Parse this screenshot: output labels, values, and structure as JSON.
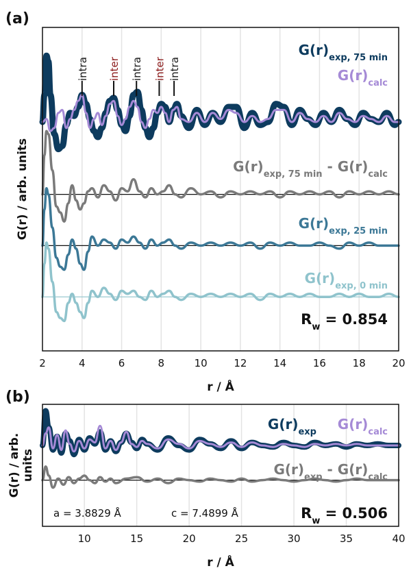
{
  "chart_data": [
    {
      "panel": "(a)",
      "type": "line",
      "xlabel": "r / Å",
      "ylabel": "G(r) / arb. units",
      "xlim": [
        2,
        20
      ],
      "xticks": [
        2,
        4,
        6,
        8,
        10,
        12,
        14,
        16,
        18,
        20
      ],
      "grid": "vertical",
      "rw_label": "R",
      "rw_sub": "w",
      "rw_value": " = 0.854",
      "peak_annotations": [
        {
          "x": 4.0,
          "label": "intra",
          "color": "#1a1a1a"
        },
        {
          "x": 5.6,
          "label": "inter",
          "color": "#8b1a1a"
        },
        {
          "x": 6.75,
          "label": "intra",
          "color": "#1a1a1a"
        },
        {
          "x": 7.9,
          "label": "inter",
          "color": "#8b1a1a"
        },
        {
          "x": 8.65,
          "label": "intra",
          "color": "#1a1a1a"
        }
      ],
      "series": [
        {
          "name": "G(r)",
          "sub": "exp, 75 min",
          "color": "#0d3b5e",
          "baseline": 0.0,
          "x": [
            2.0,
            2.1,
            2.2,
            2.3,
            2.4,
            2.6,
            2.8,
            3.0,
            3.2,
            3.4,
            3.6,
            3.8,
            4.0,
            4.2,
            4.4,
            4.6,
            4.8,
            5.0,
            5.2,
            5.4,
            5.6,
            5.8,
            6.0,
            6.2,
            6.4,
            6.6,
            6.8,
            7.0,
            7.2,
            7.4,
            7.6,
            7.8,
            8.0,
            8.2,
            8.4,
            8.6,
            8.8,
            9.0,
            9.4,
            9.8,
            10.2,
            10.6,
            11.0,
            11.4,
            11.8,
            12.2,
            12.6,
            13.0,
            13.4,
            13.8,
            14.2,
            14.6,
            15.0,
            15.4,
            15.8,
            16.2,
            16.6,
            17.0,
            17.4,
            17.8,
            18.2,
            18.6,
            19.0,
            19.4,
            19.8,
            20.0
          ],
          "y": [
            0.0,
            0.9,
            2.2,
            2.0,
            0.9,
            -0.4,
            -0.9,
            -0.8,
            -0.1,
            0.3,
            0.2,
            0.5,
            0.9,
            0.6,
            0.1,
            -0.3,
            -0.5,
            -0.2,
            0.3,
            0.7,
            0.8,
            0.4,
            -0.1,
            -0.3,
            0.2,
            0.9,
            1.0,
            0.4,
            -0.2,
            -0.5,
            -0.2,
            0.3,
            0.6,
            0.5,
            0.0,
            0.4,
            0.6,
            0.2,
            -0.2,
            0.4,
            -0.1,
            0.3,
            0.0,
            0.5,
            0.5,
            -0.2,
            0.3,
            -0.1,
            0.0,
            0.6,
            0.5,
            -0.1,
            0.4,
            0.1,
            -0.1,
            0.3,
            0.0,
            0.4,
            0.1,
            -0.1,
            0.3,
            0.1,
            0.0,
            0.3,
            -0.1,
            0.0
          ]
        },
        {
          "name": "G(r)",
          "sub": "calc",
          "color": "#a58ad6",
          "baseline": 0.0,
          "x": [
            2.0,
            2.2,
            2.4,
            2.6,
            2.8,
            3.0,
            3.2,
            3.4,
            3.6,
            3.8,
            4.0,
            4.2,
            4.4,
            4.6,
            4.8,
            5.0,
            5.2,
            5.4,
            5.6,
            5.8,
            6.0,
            6.2,
            6.4,
            6.6,
            6.8,
            7.0,
            7.2,
            7.4,
            7.6,
            7.8,
            8.0,
            8.2,
            8.4,
            8.6,
            8.8,
            9.0,
            9.4,
            9.8,
            10.2,
            10.6,
            11.0,
            11.4,
            11.8,
            12.2,
            12.6,
            13.0,
            13.4,
            13.8,
            14.2,
            14.6,
            15.0,
            15.4,
            15.8,
            16.2,
            16.6,
            17.0,
            17.4,
            17.8,
            18.2,
            18.6,
            19.0,
            19.4,
            19.8,
            20.0
          ],
          "y": [
            0.0,
            0.1,
            -0.3,
            -0.2,
            0.3,
            0.4,
            -0.2,
            0.1,
            0.4,
            0.7,
            0.9,
            0.3,
            -0.2,
            0.1,
            0.3,
            -0.1,
            0.2,
            0.6,
            0.7,
            0.2,
            -0.1,
            0.1,
            0.5,
            0.7,
            0.5,
            0.0,
            -0.2,
            0.1,
            0.4,
            0.3,
            0.5,
            0.3,
            0.0,
            0.4,
            0.5,
            0.1,
            0.0,
            0.3,
            0.0,
            0.3,
            0.1,
            0.4,
            0.3,
            0.0,
            0.2,
            0.0,
            0.1,
            0.4,
            0.4,
            0.0,
            0.3,
            0.1,
            0.0,
            0.2,
            0.0,
            0.3,
            0.1,
            0.0,
            0.2,
            0.1,
            0.0,
            0.2,
            0.0,
            0.0
          ]
        },
        {
          "name": "G(r)",
          "sub": "exp, 75 min",
          "suffix_name": " - G(r)",
          "suffix_sub": "calc",
          "color": "#7a7a7a",
          "baseline": -2.4,
          "x": [
            2.0,
            2.1,
            2.2,
            2.3,
            2.5,
            2.7,
            2.9,
            3.1,
            3.3,
            3.5,
            3.7,
            3.9,
            4.1,
            4.3,
            4.5,
            4.8,
            5.1,
            5.4,
            5.7,
            6.0,
            6.3,
            6.6,
            6.9,
            7.2,
            7.5,
            7.8,
            8.1,
            8.4,
            8.7,
            9.0,
            9.5,
            10.0,
            10.5,
            11.0,
            11.5,
            12.0,
            12.5,
            13.0,
            13.5,
            14.0,
            14.5,
            15.0,
            15.5,
            16.0,
            16.5,
            17.0,
            17.5,
            18.0,
            18.5,
            19.0,
            19.5,
            20.0
          ],
          "y": [
            0.0,
            1.3,
            2.1,
            2.0,
            0.8,
            -0.4,
            -0.6,
            -0.9,
            -0.3,
            0.3,
            -0.2,
            -0.5,
            -0.3,
            0.1,
            0.2,
            -0.1,
            0.3,
            0.1,
            -0.2,
            0.2,
            0.1,
            0.5,
            0.1,
            -0.1,
            0.2,
            0.0,
            0.1,
            0.3,
            0.0,
            -0.1,
            0.2,
            0.0,
            0.1,
            -0.1,
            0.1,
            0.0,
            0.1,
            0.0,
            0.1,
            -0.1,
            0.1,
            0.0,
            0.1,
            0.0,
            0.1,
            -0.1,
            0.1,
            0.0,
            0.1,
            0.0,
            0.1,
            0.0
          ]
        },
        {
          "name": "G(r)",
          "sub": "exp, 25 min",
          "color": "#3c7896",
          "baseline": -4.1,
          "x": [
            2.0,
            2.1,
            2.2,
            2.3,
            2.5,
            2.7,
            2.9,
            3.1,
            3.3,
            3.5,
            3.7,
            3.9,
            4.1,
            4.3,
            4.5,
            4.8,
            5.1,
            5.4,
            5.7,
            6.0,
            6.3,
            6.6,
            6.9,
            7.2,
            7.5,
            7.8,
            8.1,
            8.4,
            8.7,
            9.0,
            9.5,
            10.0,
            10.5,
            11.0,
            11.5,
            12.0,
            12.5,
            13.0,
            13.5,
            14.0,
            14.5,
            15.0,
            15.5,
            16.0,
            16.5,
            17.0,
            17.5,
            18.0,
            18.5,
            19.0,
            19.5,
            20.0
          ],
          "y": [
            0.0,
            1.2,
            1.9,
            1.7,
            0.6,
            -0.4,
            -0.7,
            -0.8,
            -0.3,
            0.2,
            -0.1,
            -0.6,
            -0.8,
            -0.2,
            0.3,
            0.0,
            0.2,
            0.1,
            -0.1,
            0.2,
            0.1,
            0.3,
            0.1,
            -0.1,
            0.2,
            0.0,
            0.1,
            0.2,
            0.0,
            -0.1,
            0.1,
            0.0,
            0.1,
            0.0,
            0.1,
            0.0,
            0.1,
            -0.1,
            0.1,
            0.0,
            0.1,
            0.0,
            0.0,
            0.1,
            0.0,
            -0.1,
            0.1,
            0.0,
            0.1,
            0.0,
            0.0,
            0.0
          ]
        },
        {
          "name": "G(r)",
          "sub": "exp, 0 min",
          "color": "#8fc3cc",
          "baseline": -5.8,
          "x": [
            2.0,
            2.1,
            2.2,
            2.3,
            2.5,
            2.7,
            2.9,
            3.1,
            3.3,
            3.5,
            3.7,
            3.9,
            4.1,
            4.3,
            4.5,
            4.8,
            5.1,
            5.4,
            5.7,
            6.0,
            6.3,
            6.6,
            6.9,
            7.2,
            7.5,
            7.8,
            8.1,
            8.4,
            8.7,
            9.0,
            9.5,
            10.0,
            10.5,
            11.0,
            11.5,
            12.0,
            12.5,
            13.0,
            13.5,
            14.0,
            14.5,
            15.0,
            15.5,
            16.0,
            16.5,
            17.0,
            17.5,
            18.0,
            18.5,
            19.0,
            19.5,
            20.0
          ],
          "y": [
            0.0,
            1.1,
            1.8,
            1.6,
            0.5,
            -0.5,
            -0.7,
            -0.8,
            -0.2,
            0.1,
            -0.2,
            -0.5,
            -0.7,
            -0.2,
            0.2,
            0.0,
            0.3,
            0.1,
            -0.1,
            0.2,
            0.1,
            0.2,
            0.0,
            -0.1,
            0.2,
            0.0,
            0.1,
            0.2,
            0.0,
            -0.1,
            0.1,
            0.0,
            0.1,
            0.0,
            0.1,
            0.0,
            0.1,
            -0.1,
            0.1,
            0.0,
            0.1,
            0.0,
            0.1,
            0.0,
            0.0,
            0.1,
            0.0,
            0.1,
            0.0,
            0.0,
            0.1,
            0.0
          ]
        }
      ]
    },
    {
      "panel": "(b)",
      "type": "line",
      "xlabel": "r / Å",
      "ylabel": "G(r) / arb.\nunits",
      "ylabel_line1": "G(r) / arb.",
      "ylabel_line2": "units",
      "xlim": [
        6,
        40
      ],
      "xticks": [
        10,
        15,
        20,
        25,
        30,
        35,
        40
      ],
      "grid": "vertical",
      "lattice_a": "a = 3.8829 Å",
      "lattice_c": "c = 7.4899 Å",
      "rw_label": "R",
      "rw_sub": "w",
      "rw_value": " = 0.506",
      "series": [
        {
          "name": "G(r)",
          "sub": "exp",
          "color": "#0d3b5e",
          "baseline": 0.0,
          "x": [
            6.0,
            6.3,
            6.6,
            7.0,
            7.4,
            7.8,
            8.2,
            8.6,
            9.0,
            9.5,
            10.0,
            10.5,
            11.0,
            11.5,
            12.0,
            12.5,
            13.0,
            13.5,
            14.0,
            14.5,
            15.0,
            15.5,
            16.0,
            17.0,
            18.0,
            19.0,
            20.0,
            21.0,
            22.0,
            23.0,
            24.0,
            25.0,
            26.0,
            27.0,
            28.0,
            29.0,
            30.0,
            31.0,
            32.0,
            33.0,
            34.0,
            35.0,
            36.0,
            37.0,
            38.0,
            39.0,
            40.0
          ],
          "y": [
            0.0,
            2.3,
            1.2,
            -0.3,
            0.6,
            -0.5,
            0.8,
            0.3,
            -0.6,
            0.4,
            -0.3,
            0.5,
            0.1,
            0.9,
            -0.3,
            0.3,
            -0.4,
            0.2,
            0.8,
            0.2,
            -0.2,
            0.4,
            0.1,
            -0.3,
            0.5,
            0.0,
            -0.3,
            0.4,
            0.1,
            -0.2,
            0.3,
            -0.2,
            0.2,
            0.0,
            -0.1,
            0.2,
            0.0,
            -0.1,
            0.2,
            0.0,
            0.1,
            -0.1,
            0.1,
            0.0,
            0.1,
            0.0,
            0.0
          ]
        },
        {
          "name": "G(r)",
          "sub": "calc",
          "color": "#a58ad6",
          "baseline": 0.0,
          "x": [
            6.0,
            6.3,
            6.6,
            7.0,
            7.4,
            7.8,
            8.2,
            8.6,
            9.0,
            9.5,
            10.0,
            10.5,
            11.0,
            11.5,
            12.0,
            12.5,
            13.0,
            13.5,
            14.0,
            14.5,
            15.0,
            15.5,
            16.0,
            17.0,
            18.0,
            19.0,
            20.0,
            21.0,
            22.0,
            23.0,
            24.0,
            25.0,
            26.0,
            27.0,
            28.0,
            29.0,
            30.0,
            31.0,
            32.0,
            33.0,
            34.0,
            35.0,
            36.0,
            37.0,
            38.0,
            39.0,
            40.0
          ],
          "y": [
            0.0,
            0.8,
            1.2,
            -0.2,
            0.7,
            -0.3,
            1.0,
            0.1,
            -0.4,
            0.3,
            -0.2,
            0.4,
            0.2,
            1.3,
            -0.2,
            0.3,
            -0.3,
            0.2,
            0.9,
            0.1,
            -0.1,
            0.3,
            0.1,
            -0.2,
            0.4,
            0.1,
            -0.2,
            0.3,
            0.1,
            -0.1,
            0.2,
            -0.1,
            0.2,
            0.0,
            -0.1,
            0.1,
            0.0,
            -0.1,
            0.1,
            0.0,
            0.1,
            0.0,
            0.1,
            0.0,
            0.0,
            0.0,
            0.0
          ]
        },
        {
          "name": "G(r)",
          "sub": "exp",
          "suffix_name": " - G(r)",
          "suffix_sub": "calc",
          "color": "#7a7a7a",
          "baseline": -2.3,
          "x": [
            6.0,
            6.3,
            6.6,
            7.0,
            7.5,
            8.0,
            8.5,
            9.0,
            9.5,
            10.0,
            10.5,
            11.0,
            11.5,
            12.0,
            12.5,
            13.0,
            14.0,
            15.0,
            16.0,
            17.0,
            18.0,
            19.0,
            20.0,
            21.0,
            22.0,
            23.0,
            24.0,
            25.0,
            26.0,
            27.0,
            28.0,
            29.0,
            30.0,
            31.0,
            32.0,
            33.0,
            34.0,
            35.0,
            36.0,
            37.0,
            38.0,
            39.0,
            40.0
          ],
          "y": [
            0.0,
            0.9,
            0.3,
            -0.5,
            0.1,
            -0.3,
            0.2,
            -0.2,
            0.1,
            0.3,
            0.0,
            -0.2,
            0.2,
            -0.1,
            0.1,
            -0.2,
            0.1,
            0.2,
            -0.1,
            0.1,
            -0.2,
            0.1,
            0.0,
            -0.1,
            0.1,
            0.0,
            -0.1,
            0.1,
            -0.1,
            0.0,
            0.1,
            0.0,
            -0.1,
            0.0,
            0.1,
            0.0,
            -0.1,
            0.0,
            0.1,
            0.0,
            0.0,
            0.0,
            0.0
          ]
        }
      ]
    }
  ]
}
